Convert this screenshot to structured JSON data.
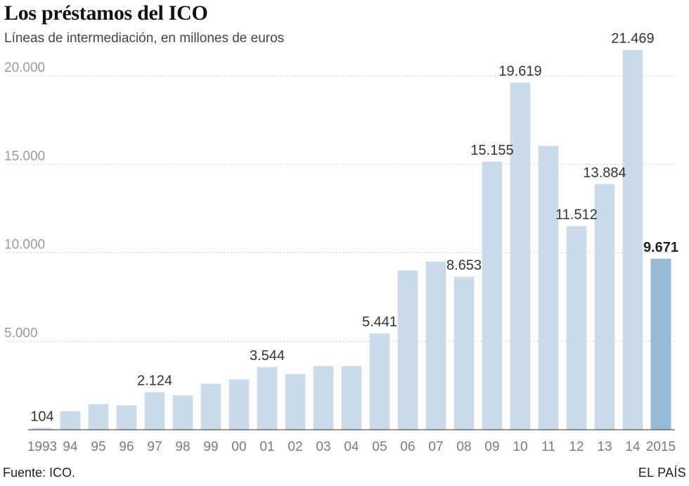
{
  "header": {
    "title": "Los préstamos del ICO",
    "subtitle": "Líneas de intermediación, en millones de euros"
  },
  "footer": {
    "source": "Fuente: ICO.",
    "brand": "EL PAÍS"
  },
  "colors": {
    "bar": "#c9dcea",
    "bar_highlight": "#93b9d5",
    "grid": "#c8c8c8",
    "axis": "#555555"
  },
  "chart_data": {
    "type": "bar",
    "title": "Los préstamos del ICO",
    "subtitle": "Líneas de intermediación, en millones de euros",
    "xlabel": "",
    "ylabel": "",
    "ylim": [
      0,
      22000
    ],
    "grid": true,
    "yticks": [
      5000,
      10000,
      15000,
      20000
    ],
    "ytick_labels": [
      "5.000",
      "10.000",
      "15.000",
      "20.000"
    ],
    "categories": [
      "1993",
      "94",
      "95",
      "96",
      "97",
      "98",
      "99",
      "00",
      "01",
      "02",
      "03",
      "04",
      "05",
      "06",
      "07",
      "08",
      "09",
      "10",
      "11",
      "12",
      "13",
      "14",
      "2015"
    ],
    "values": [
      104,
      1050,
      1450,
      1380,
      2124,
      1950,
      2600,
      2850,
      3544,
      3150,
      3600,
      3600,
      5441,
      9000,
      9500,
      8653,
      15155,
      19619,
      16050,
      11512,
      13884,
      21469,
      9671
    ],
    "value_labels": [
      "104",
      "",
      "",
      "",
      "2.124",
      "",
      "",
      "",
      "3.544",
      "",
      "",
      "",
      "5.441",
      "",
      "",
      "8.653",
      "15.155",
      "19.619",
      "",
      "11.512",
      "13.884",
      "21.469",
      "9.671"
    ],
    "highlight_index": 22
  }
}
